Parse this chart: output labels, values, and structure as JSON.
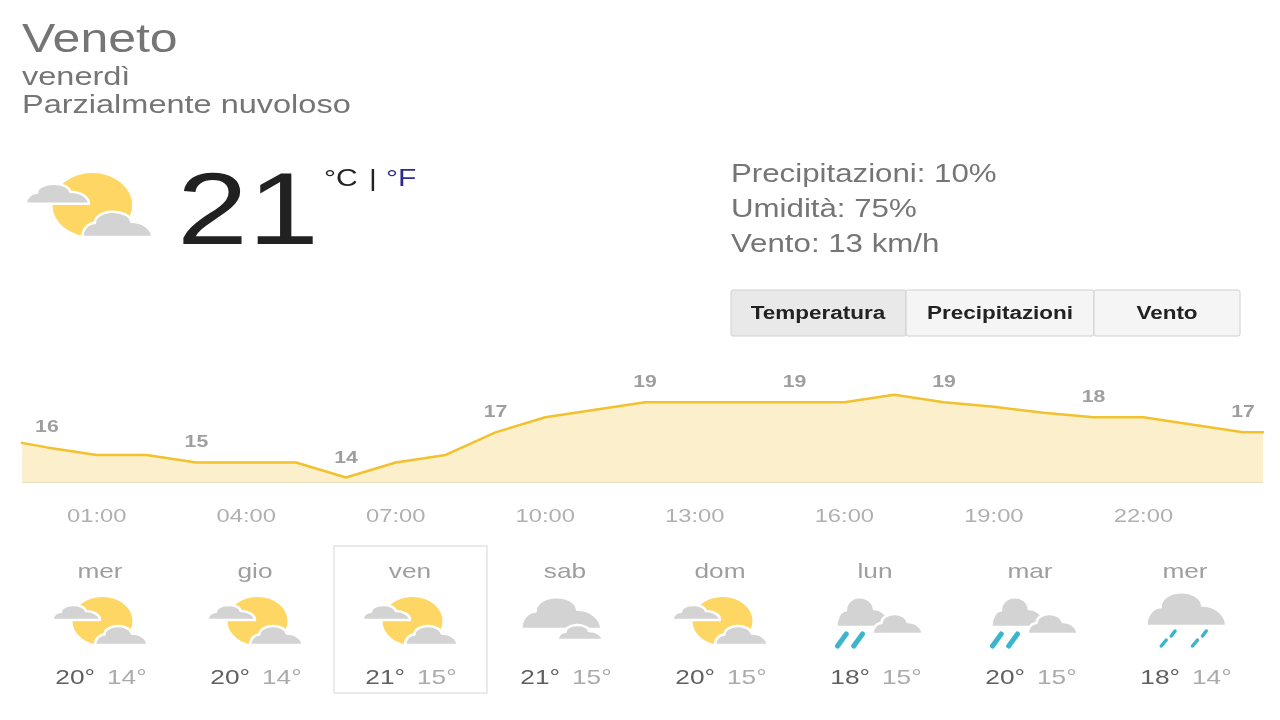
{
  "chart_data": [
    {
      "type": "other",
      "title": "Veneto",
      "subtitle": "venerdì",
      "annotations": [
        "Parzialmente nuvoloso",
        "21",
        "°C",
        "|",
        "°F",
        "Precipitazioni: 10%",
        "Umidità: 75%",
        "Vento: 13 km/h",
        "Temperatura",
        "Precipitazioni",
        "Vento"
      ]
    },
    {
      "type": "area",
      "x": [
        -0.5,
        0,
        1,
        2,
        3,
        4,
        5,
        6,
        7,
        8,
        9,
        10,
        11,
        12,
        13,
        14,
        15,
        16,
        17,
        18,
        19,
        20,
        21,
        22,
        23,
        24,
        24.4
      ],
      "xlim": [
        -0.5,
        24.4
      ],
      "xticks": [
        {
          "value": 1,
          "label": "01:00"
        },
        {
          "value": 4,
          "label": "04:00"
        },
        {
          "value": 7,
          "label": "07:00"
        },
        {
          "value": 10,
          "label": "10:00"
        },
        {
          "value": 13,
          "label": "13:00"
        },
        {
          "value": 16,
          "label": "16:00"
        },
        {
          "value": 19,
          "label": "19:00"
        },
        {
          "value": 22,
          "label": "22:00"
        }
      ],
      "series": [
        {
          "color": "#f2c12e",
          "values": [
            16.3,
            16,
            15.5,
            15.5,
            15,
            15,
            15,
            14,
            15,
            15.5,
            17,
            18,
            18.5,
            19,
            19,
            19,
            19,
            19,
            19.5,
            19,
            18.7,
            18.3,
            18,
            18,
            17.5,
            17,
            17
          ],
          "value_labels": [
            null,
            "16",
            null,
            null,
            "15",
            null,
            null,
            "14",
            null,
            null,
            "17",
            null,
            null,
            "19",
            null,
            null,
            "19",
            null,
            null,
            "19",
            null,
            null,
            "18",
            null,
            null,
            "17",
            null
          ]
        }
      ]
    },
    {
      "type": "other",
      "categories": [
        "mer",
        "gio",
        "ven",
        "sab",
        "dom",
        "lun",
        "mar",
        "mer"
      ],
      "annotations": [
        "20°",
        "14°",
        "20°",
        "14°",
        "21°",
        "15°",
        "21°",
        "15°",
        "20°",
        "15°",
        "18°",
        "15°",
        "20°",
        "15°",
        "18°",
        "14°"
      ]
    }
  ]
}
